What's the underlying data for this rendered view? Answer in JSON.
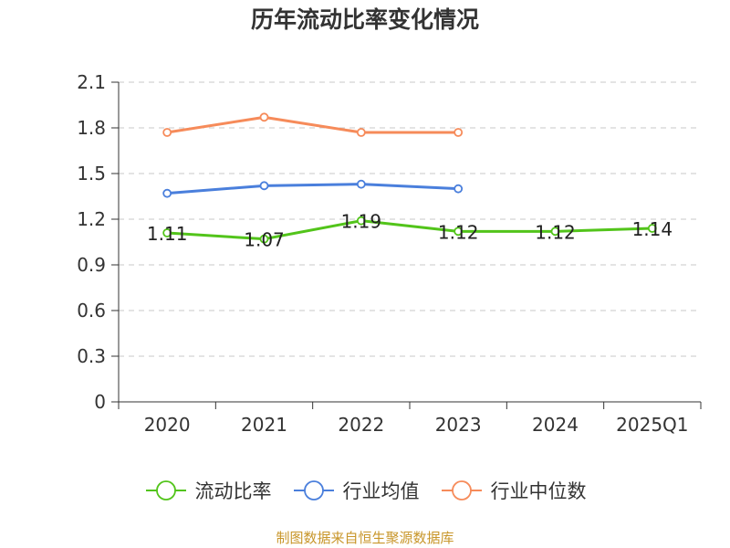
{
  "chart_data": {
    "type": "line",
    "title": "历年流动比率变化情况",
    "categories": [
      "2020",
      "2021",
      "2022",
      "2023",
      "2024",
      "2025Q1"
    ],
    "y_ticks": [
      "0",
      "0.3",
      "0.6",
      "0.9",
      "1.2",
      "1.5",
      "1.8",
      "2.1"
    ],
    "ylim": [
      0,
      2.1
    ],
    "grid": true,
    "legend_position": "bottom",
    "series": [
      {
        "name": "流动比率",
        "color": "#52c41a",
        "values": [
          1.11,
          1.07,
          1.19,
          1.12,
          1.12,
          1.14
        ],
        "labels": [
          "1.11",
          "1.07",
          "1.19",
          "1.12",
          "1.12",
          "1.14"
        ]
      },
      {
        "name": "行业均值",
        "color": "#4a7fdc",
        "values": [
          1.37,
          1.42,
          1.43,
          1.4,
          null,
          null
        ]
      },
      {
        "name": "行业中位数",
        "color": "#f68b5a",
        "values": [
          1.77,
          1.87,
          1.77,
          1.77,
          null,
          null
        ]
      }
    ]
  },
  "source": {
    "text": "制图数据来自恒生聚源数据库",
    "color": "#c8962a"
  }
}
